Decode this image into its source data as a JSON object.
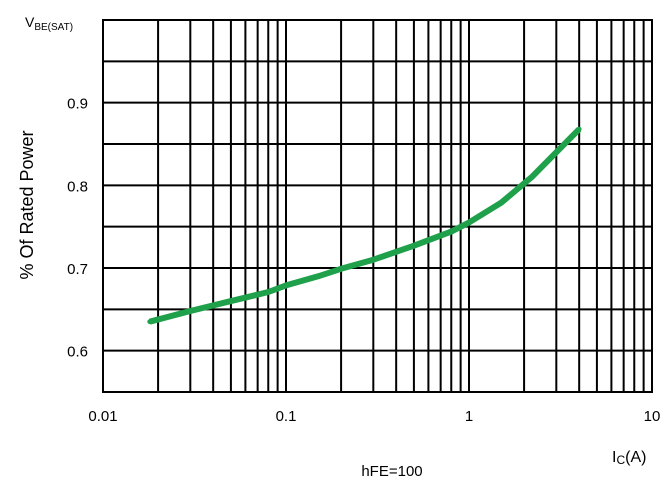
{
  "chart_data": {
    "type": "line",
    "x_scale": "log",
    "xlim": [
      0.01,
      10
    ],
    "ylim": [
      0.55,
      1.0
    ],
    "x_ticks": [
      0.01,
      0.1,
      1,
      10
    ],
    "x_tick_labels": [
      "0.01",
      "0.1",
      "1",
      "10"
    ],
    "y_ticks": [
      0.6,
      0.7,
      0.8,
      0.9
    ],
    "y_tick_labels": [
      "0.6",
      "0.7",
      "0.8",
      "0.9"
    ],
    "ylabel": "% Of Rated Power",
    "y_axis_title": {
      "main": "V",
      "sub": "BE(SAT)"
    },
    "x_axis_title": {
      "main": "I",
      "sub": "C",
      "suffix": "(A)"
    },
    "annotation": "hFE=100",
    "grid": true,
    "legend": "none",
    "line_color": "#1fa04a",
    "series": [
      {
        "x": [
          0.018,
          0.03,
          0.05,
          0.08,
          0.1,
          0.15,
          0.2,
          0.3,
          0.5,
          0.8,
          1.0,
          1.5,
          2.2,
          3.0,
          4.0
        ],
        "y": [
          0.635,
          0.648,
          0.66,
          0.671,
          0.679,
          0.69,
          0.699,
          0.71,
          0.727,
          0.744,
          0.755,
          0.779,
          0.81,
          0.84,
          0.868
        ]
      }
    ]
  }
}
